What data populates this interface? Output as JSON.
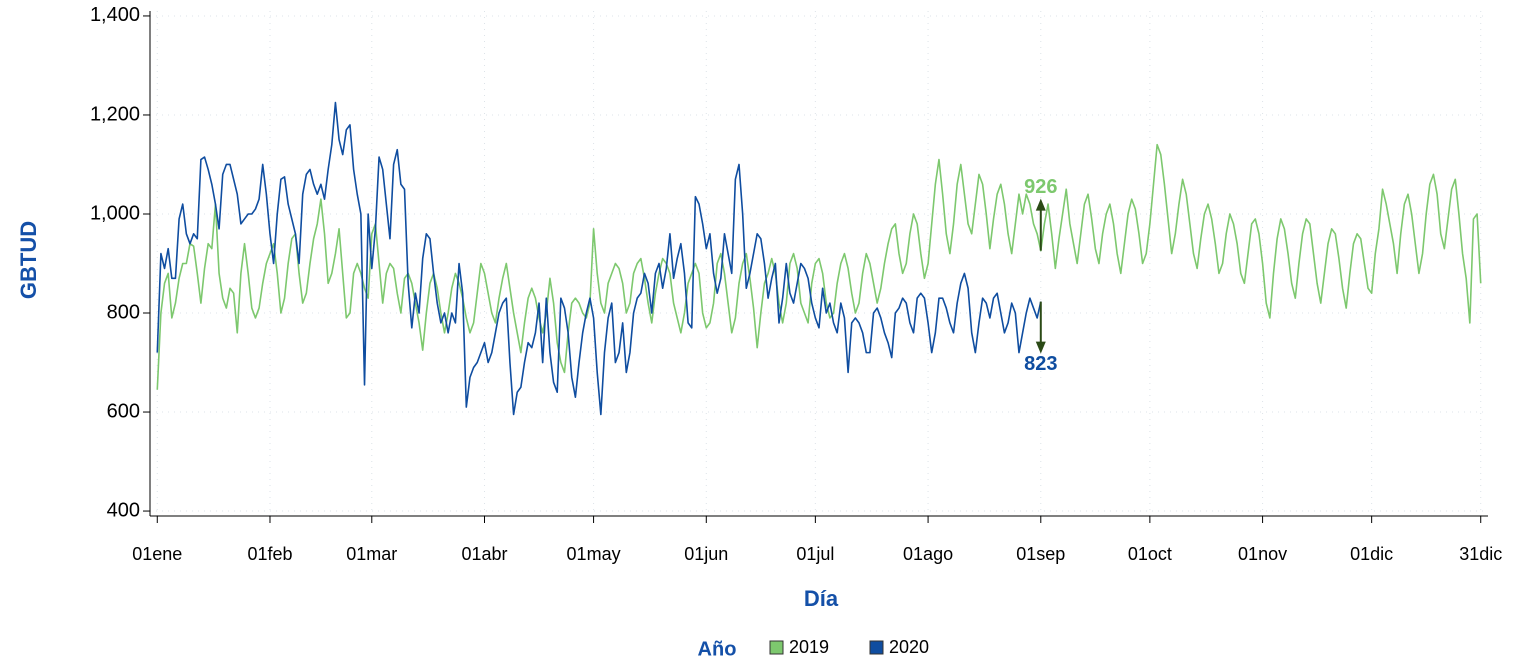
{
  "chart_data": {
    "type": "line",
    "xlabel": "Día",
    "ylabel": "GBTUD",
    "legend_title": "Año",
    "x": [
      1,
      2,
      3,
      4,
      5,
      6,
      7,
      8,
      9,
      10,
      11,
      12,
      13,
      14,
      15,
      16,
      17,
      18,
      19,
      20,
      21,
      22,
      23,
      24,
      25,
      26,
      27,
      28,
      29,
      30,
      31,
      32,
      33,
      34,
      35,
      36,
      37,
      38,
      39,
      40,
      41,
      42,
      43,
      44,
      45,
      46,
      47,
      48,
      49,
      50,
      51,
      52,
      53,
      54,
      55,
      56,
      57,
      58,
      59,
      60,
      61,
      62,
      63,
      64,
      65,
      66,
      67,
      68,
      69,
      70,
      71,
      72,
      73,
      74,
      75,
      76,
      77,
      78,
      79,
      80,
      81,
      82,
      83,
      84,
      85,
      86,
      87,
      88,
      89,
      90,
      91,
      92,
      93,
      94,
      95,
      96,
      97,
      98,
      99,
      100,
      101,
      102,
      103,
      104,
      105,
      106,
      107,
      108,
      109,
      110,
      111,
      112,
      113,
      114,
      115,
      116,
      117,
      118,
      119,
      120,
      121,
      122,
      123,
      124,
      125,
      126,
      127,
      128,
      129,
      130,
      131,
      132,
      133,
      134,
      135,
      136,
      137,
      138,
      139,
      140,
      141,
      142,
      143,
      144,
      145,
      146,
      147,
      148,
      149,
      150,
      151,
      152,
      153,
      154,
      155,
      156,
      157,
      158,
      159,
      160,
      161,
      162,
      163,
      164,
      165,
      166,
      167,
      168,
      169,
      170,
      171,
      172,
      173,
      174,
      175,
      176,
      177,
      178,
      179,
      180,
      181,
      182,
      183,
      184,
      185,
      186,
      187,
      188,
      189,
      190,
      191,
      192,
      193,
      194,
      195,
      196,
      197,
      198,
      199,
      200,
      201,
      202,
      203,
      204,
      205,
      206,
      207,
      208,
      209,
      210,
      211,
      212,
      213,
      214,
      215,
      216,
      217,
      218,
      219,
      220,
      221,
      222,
      223,
      224,
      225,
      226,
      227,
      228,
      229,
      230,
      231,
      232,
      233,
      234,
      235,
      236,
      237,
      238,
      239,
      240,
      241,
      242,
      243,
      244,
      245,
      246,
      247,
      248,
      249,
      250,
      251,
      252,
      253,
      254,
      255,
      256,
      257,
      258,
      259,
      260,
      261,
      262,
      263,
      264,
      265,
      266,
      267,
      268,
      269,
      270,
      271,
      272,
      273,
      274,
      275,
      276,
      277,
      278,
      279,
      280,
      281,
      282,
      283,
      284,
      285,
      286,
      287,
      288,
      289,
      290,
      291,
      292,
      293,
      294,
      295,
      296,
      297,
      298,
      299,
      300,
      301,
      302,
      303,
      304,
      305,
      306,
      307,
      308,
      309,
      310,
      311,
      312,
      313,
      314,
      315,
      316,
      317,
      318,
      319,
      320,
      321,
      322,
      323,
      324,
      325,
      326,
      327,
      328,
      329,
      330,
      331,
      332,
      333,
      334,
      335,
      336,
      337,
      338,
      339,
      340,
      341,
      342,
      343,
      344,
      345,
      346,
      347,
      348,
      349,
      350,
      351,
      352,
      353,
      354,
      355,
      356,
      357,
      358,
      359,
      360,
      361,
      362,
      363,
      364,
      365
    ],
    "series": [
      {
        "name": "2019",
        "color": "#7dc86e",
        "values": [
          645,
          800,
          860,
          880,
          790,
          820,
          870,
          900,
          900,
          940,
          935,
          880,
          820,
          890,
          940,
          930,
          1020,
          880,
          830,
          810,
          850,
          840,
          760,
          880,
          940,
          880,
          810,
          790,
          810,
          860,
          900,
          920,
          940,
          880,
          800,
          830,
          900,
          950,
          960,
          880,
          820,
          840,
          900,
          950,
          980,
          1030,
          960,
          860,
          880,
          920,
          970,
          880,
          790,
          800,
          880,
          900,
          880,
          850,
          830,
          960,
          980,
          900,
          820,
          880,
          900,
          890,
          840,
          800,
          870,
          880,
          860,
          820,
          780,
          725,
          800,
          860,
          880,
          850,
          800,
          760,
          800,
          850,
          880,
          860,
          830,
          790,
          760,
          780,
          840,
          900,
          880,
          840,
          800,
          780,
          830,
          870,
          900,
          850,
          800,
          760,
          720,
          780,
          830,
          850,
          830,
          790,
          760,
          800,
          870,
          820,
          740,
          700,
          680,
          760,
          820,
          830,
          820,
          800,
          790,
          820,
          970,
          880,
          820,
          800,
          860,
          880,
          900,
          890,
          860,
          800,
          820,
          880,
          900,
          910,
          870,
          820,
          780,
          840,
          880,
          910,
          900,
          880,
          820,
          790,
          760,
          800,
          860,
          880,
          900,
          880,
          800,
          770,
          780,
          820,
          900,
          920,
          880,
          820,
          760,
          790,
          860,
          900,
          920,
          870,
          810,
          730,
          800,
          860,
          880,
          910,
          880,
          820,
          780,
          820,
          900,
          920,
          890,
          820,
          800,
          780,
          860,
          900,
          910,
          880,
          820,
          790,
          800,
          860,
          900,
          920,
          890,
          840,
          800,
          820,
          880,
          920,
          900,
          860,
          820,
          850,
          900,
          940,
          970,
          980,
          920,
          880,
          900,
          960,
          1000,
          980,
          920,
          870,
          900,
          980,
          1060,
          1110,
          1040,
          960,
          920,
          980,
          1060,
          1100,
          1040,
          980,
          960,
          1020,
          1080,
          1060,
          1000,
          930,
          990,
          1040,
          1060,
          1020,
          960,
          920,
          980,
          1040,
          1000,
          1040,
          1020,
          980,
          960,
          926,
          980,
          1020,
          960,
          890,
          950,
          1000,
          1050,
          980,
          940,
          900,
          960,
          1020,
          1040,
          990,
          930,
          900,
          960,
          1000,
          1020,
          980,
          920,
          880,
          940,
          1000,
          1030,
          1010,
          960,
          900,
          920,
          980,
          1060,
          1140,
          1120,
          1060,
          990,
          920,
          960,
          1020,
          1070,
          1040,
          980,
          920,
          890,
          950,
          1000,
          1020,
          990,
          940,
          880,
          900,
          960,
          1000,
          980,
          940,
          880,
          860,
          920,
          980,
          990,
          960,
          900,
          820,
          790,
          880,
          950,
          990,
          970,
          920,
          860,
          830,
          900,
          960,
          990,
          980,
          920,
          860,
          820,
          880,
          940,
          970,
          960,
          910,
          850,
          810,
          880,
          940,
          960,
          950,
          900,
          850,
          840,
          920,
          970,
          1050,
          1020,
          980,
          940,
          880,
          960,
          1020,
          1040,
          1000,
          940,
          880,
          920,
          1000,
          1060,
          1080,
          1040,
          960,
          930,
          990,
          1050,
          1070,
          1000,
          920,
          870,
          780,
          990,
          1000,
          860
        ]
      },
      {
        "name": "2020",
        "color": "#0f4da0",
        "values": [
          720,
          920,
          890,
          930,
          870,
          870,
          990,
          1020,
          960,
          940,
          960,
          950,
          1110,
          1115,
          1090,
          1060,
          1020,
          970,
          1080,
          1100,
          1100,
          1070,
          1040,
          980,
          990,
          1000,
          1000,
          1010,
          1030,
          1100,
          1040,
          960,
          900,
          1000,
          1070,
          1075,
          1020,
          990,
          960,
          900,
          1040,
          1080,
          1090,
          1060,
          1040,
          1060,
          1030,
          1090,
          1140,
          1225,
          1150,
          1120,
          1170,
          1180,
          1090,
          1040,
          1000,
          655,
          1000,
          890,
          970,
          1115,
          1090,
          1020,
          950,
          1100,
          1130,
          1060,
          1050,
          860,
          770,
          840,
          800,
          910,
          960,
          950,
          880,
          820,
          780,
          800,
          760,
          800,
          780,
          900,
          840,
          610,
          670,
          690,
          700,
          720,
          740,
          700,
          720,
          760,
          800,
          820,
          830,
          700,
          595,
          640,
          650,
          700,
          740,
          730,
          760,
          820,
          700,
          830,
          720,
          660,
          640,
          830,
          810,
          760,
          670,
          630,
          700,
          760,
          800,
          830,
          790,
          680,
          595,
          720,
          790,
          820,
          700,
          720,
          780,
          680,
          720,
          800,
          830,
          840,
          880,
          860,
          800,
          880,
          900,
          850,
          890,
          960,
          870,
          910,
          940,
          880,
          780,
          770,
          1035,
          1020,
          980,
          930,
          960,
          880,
          840,
          870,
          960,
          920,
          880,
          1070,
          1100,
          1000,
          850,
          880,
          920,
          960,
          950,
          900,
          830,
          870,
          900,
          780,
          830,
          900,
          840,
          820,
          860,
          900,
          890,
          870,
          820,
          790,
          770,
          850,
          800,
          820,
          780,
          760,
          820,
          790,
          680,
          780,
          790,
          780,
          760,
          720,
          720,
          800,
          810,
          790,
          760,
          740,
          710,
          800,
          810,
          830,
          820,
          780,
          760,
          830,
          840,
          830,
          780,
          720,
          760,
          830,
          830,
          810,
          780,
          760,
          820,
          860,
          880,
          850,
          760,
          720,
          780,
          830,
          820,
          790,
          830,
          840,
          800,
          760,
          780,
          820,
          800,
          720,
          760,
          800,
          830,
          810,
          790,
          823,
          null,
          null,
          null,
          null,
          null,
          null,
          null,
          null,
          null,
          null,
          null,
          null,
          null,
          null,
          null,
          null,
          null,
          null,
          null,
          null,
          null,
          null,
          null,
          null,
          null,
          null,
          null,
          null,
          null,
          null,
          null,
          null,
          null,
          null,
          null,
          null,
          null,
          null,
          null,
          null,
          null,
          null,
          null,
          null,
          null,
          null,
          null,
          null,
          null,
          null,
          null,
          null,
          null,
          null,
          null,
          null,
          null,
          null,
          null,
          null,
          null,
          null,
          null,
          null,
          null,
          null,
          null,
          null,
          null,
          null,
          null,
          null,
          null,
          null,
          null,
          null,
          null,
          null,
          null,
          null,
          null,
          null,
          null,
          null,
          null,
          null,
          null,
          null,
          null,
          null,
          null,
          null,
          null,
          null,
          null,
          null,
          null,
          null,
          null,
          null,
          null,
          null,
          null,
          null,
          null,
          null,
          null,
          null,
          null,
          null,
          null,
          null,
          null,
          null,
          null,
          null,
          null,
          null,
          null,
          null,
          null
        ]
      }
    ],
    "xlim": [
      -1,
      367
    ],
    "xticks": [
      {
        "value": 1,
        "label": "01ene"
      },
      {
        "value": 32,
        "label": "01feb"
      },
      {
        "value": 60,
        "label": "01mar"
      },
      {
        "value": 91,
        "label": "01abr"
      },
      {
        "value": 121,
        "label": "01may"
      },
      {
        "value": 152,
        "label": "01jun"
      },
      {
        "value": 182,
        "label": "01jul"
      },
      {
        "value": 213,
        "label": "01ago"
      },
      {
        "value": 244,
        "label": "01sep"
      },
      {
        "value": 274,
        "label": "01oct"
      },
      {
        "value": 305,
        "label": "01nov"
      },
      {
        "value": 335,
        "label": "01dic"
      },
      {
        "value": 365,
        "label": "31dic"
      }
    ],
    "ylim": [
      390,
      1410
    ],
    "yticks": [
      400,
      600,
      800,
      {
        "value": 1000,
        "label": "1,000"
      },
      {
        "value": 1200,
        "label": "1,200"
      },
      {
        "value": 1400,
        "label": "1,400"
      }
    ],
    "grid": true
  }
}
